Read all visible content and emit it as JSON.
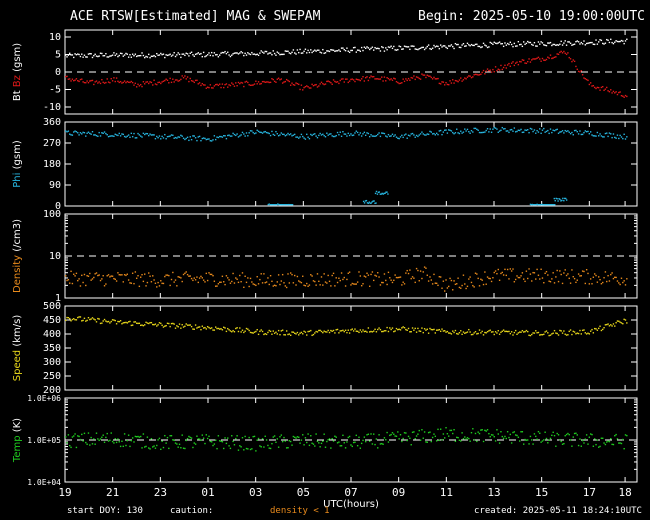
{
  "header": {
    "title": "ACE RTSW[Estimated] MAG & SWEPAM",
    "begin": "Begin: 2025-05-10 19:00:00UTC"
  },
  "footer": {
    "start_doy": "start DOY: 130",
    "caution_label": "caution:",
    "caution_text": "density < 1",
    "created": "created: 2025-05-11 18:24:10UTC"
  },
  "colors": {
    "bt": "#ffffff",
    "bz": "#e01818",
    "phi": "#27b6e0",
    "density": "#e88a1c",
    "speed": "#e8d71a",
    "temp": "#1fce1f",
    "caution": "#e88a1c",
    "frame": "#ffffff",
    "reference": "#ffffff"
  },
  "chart_data": [
    {
      "type": "scatter",
      "panel": "mag",
      "ylabel_parts": [
        {
          "text": "Bt",
          "color": "bt"
        },
        {
          "text": " Bz",
          "color": "bz"
        },
        {
          "text": " (gsm)",
          "color": "frame"
        }
      ],
      "ylim": [
        -12,
        12
      ],
      "yticks": [
        {
          "v": 10,
          "label": "10"
        },
        {
          "v": 5,
          "label": "5"
        },
        {
          "v": 0,
          "label": "0"
        },
        {
          "v": -5,
          "label": "-5"
        },
        {
          "v": -10,
          "label": "-10"
        }
      ],
      "reference_lines": [
        0
      ],
      "series": [
        {
          "name": "Bt",
          "color": "bt",
          "hours": [
            0,
            2,
            4,
            6,
            8,
            10,
            12,
            14,
            16,
            18,
            20,
            22,
            23.5
          ],
          "values": [
            4.8,
            5.0,
            5.0,
            5.2,
            5.5,
            6.0,
            6.5,
            7.0,
            7.5,
            8.0,
            8.3,
            8.7,
            9.0
          ]
        },
        {
          "name": "Bz",
          "color": "bz",
          "hours": [
            0,
            1,
            2,
            3,
            4,
            5,
            6,
            7,
            8,
            9,
            10,
            11,
            12,
            13,
            14,
            15,
            16,
            17,
            18,
            19,
            20,
            21,
            22,
            23.5
          ],
          "values": [
            -1.5,
            -3.0,
            -2.0,
            -3.5,
            -2.5,
            -1.5,
            -4.0,
            -3.5,
            -3.0,
            -2.0,
            -4.5,
            -3.0,
            -2.0,
            -1.5,
            -2.5,
            -1.0,
            -3.0,
            -1.0,
            1.0,
            3.0,
            4.0,
            6.0,
            -3.5,
            -6.5
          ]
        }
      ]
    },
    {
      "type": "scatter",
      "panel": "phi",
      "ylabel_parts": [
        {
          "text": "Phi",
          "color": "phi"
        },
        {
          "text": " (gsm)",
          "color": "frame"
        }
      ],
      "ylim": [
        0,
        360
      ],
      "yticks": [
        {
          "v": 360,
          "label": "360"
        },
        {
          "v": 270,
          "label": "270"
        },
        {
          "v": 180,
          "label": "180"
        },
        {
          "v": 90,
          "label": "90"
        },
        {
          "v": 0,
          "label": "0"
        }
      ],
      "reference_lines": [],
      "series": [
        {
          "name": "Phi",
          "color": "phi",
          "hours": [
            0,
            2,
            4,
            6,
            8,
            10,
            12,
            14,
            16,
            18,
            20,
            22,
            23.5
          ],
          "values": [
            315,
            310,
            300,
            290,
            320,
            300,
            315,
            300,
            320,
            330,
            325,
            315,
            300
          ],
          "extra_points": [
            {
              "h": 8.5,
              "v": 5
            },
            {
              "h": 9,
              "v": 3
            },
            {
              "h": 12.5,
              "v": 20
            },
            {
              "h": 13,
              "v": 60
            },
            {
              "h": 19.5,
              "v": 5
            },
            {
              "h": 20,
              "v": 3
            },
            {
              "h": 20.5,
              "v": 30
            }
          ]
        }
      ]
    },
    {
      "type": "scatter",
      "panel": "density",
      "scale": "log",
      "ylabel_parts": [
        {
          "text": "Density",
          "color": "density"
        },
        {
          "text": " (/cm3)",
          "color": "frame"
        }
      ],
      "ylim": [
        1,
        100
      ],
      "yticks": [
        {
          "v": 100,
          "label": "100"
        },
        {
          "v": 10,
          "label": "10"
        },
        {
          "v": 1,
          "label": "1"
        }
      ],
      "reference_lines": [
        10
      ],
      "series": [
        {
          "name": "Density",
          "color": "density",
          "hours": [
            0,
            2,
            4,
            6,
            8,
            10,
            12,
            14,
            15,
            16,
            18,
            20,
            22,
            23.5
          ],
          "values": [
            3.0,
            3.0,
            2.8,
            3.0,
            2.7,
            2.8,
            3.0,
            2.8,
            4.0,
            2.0,
            3.5,
            3.5,
            3.3,
            3.0
          ]
        }
      ]
    },
    {
      "type": "scatter",
      "panel": "speed",
      "ylabel_parts": [
        {
          "text": "Speed",
          "color": "speed"
        },
        {
          "text": " (km/s)",
          "color": "frame"
        }
      ],
      "ylim": [
        200,
        500
      ],
      "yticks": [
        {
          "v": 500,
          "label": "500"
        },
        {
          "v": 450,
          "label": "450"
        },
        {
          "v": 400,
          "label": "400"
        },
        {
          "v": 350,
          "label": "350"
        },
        {
          "v": 300,
          "label": "300"
        },
        {
          "v": 250,
          "label": "250"
        },
        {
          "v": 200,
          "label": "200"
        }
      ],
      "reference_lines": [],
      "series": [
        {
          "name": "Speed",
          "color": "speed",
          "hours": [
            0,
            2,
            4,
            6,
            8,
            10,
            12,
            14,
            16,
            18,
            20,
            22,
            23.5
          ],
          "values": [
            460,
            445,
            435,
            425,
            410,
            405,
            415,
            420,
            410,
            408,
            405,
            410,
            450
          ]
        }
      ]
    },
    {
      "type": "scatter",
      "panel": "temp",
      "scale": "log",
      "ylabel_parts": [
        {
          "text": "Temp",
          "color": "temp"
        },
        {
          "text": " (K)",
          "color": "frame"
        }
      ],
      "ylim": [
        10000,
        1000000
      ],
      "yticks": [
        {
          "v": 1000000,
          "label": "1.0E+06"
        },
        {
          "v": 100000,
          "label": "1.0E+05"
        },
        {
          "v": 10000,
          "label": "1.0E+04"
        }
      ],
      "reference_lines": [
        100000
      ],
      "series": [
        {
          "name": "Temp",
          "color": "temp",
          "hours": [
            0,
            2,
            4,
            6,
            8,
            10,
            12,
            14,
            16,
            18,
            20,
            22,
            23.5
          ],
          "values": [
            100000,
            110000,
            90000,
            95000,
            85000,
            100000,
            90000,
            110000,
            140000,
            130000,
            110000,
            100000,
            95000
          ]
        }
      ]
    }
  ],
  "x_axis": {
    "label": "UTC(hours)",
    "range_hours": [
      0,
      24
    ],
    "ticks": [
      {
        "h": 0,
        "label": "19"
      },
      {
        "h": 2,
        "label": "21"
      },
      {
        "h": 4,
        "label": "23"
      },
      {
        "h": 6,
        "label": "01"
      },
      {
        "h": 8,
        "label": "03"
      },
      {
        "h": 10,
        "label": "05"
      },
      {
        "h": 12,
        "label": "07"
      },
      {
        "h": 14,
        "label": "09"
      },
      {
        "h": 16,
        "label": "11"
      },
      {
        "h": 18,
        "label": "13"
      },
      {
        "h": 20,
        "label": "15"
      },
      {
        "h": 22,
        "label": "17"
      },
      {
        "h": 23.5,
        "label": "18"
      }
    ]
  }
}
